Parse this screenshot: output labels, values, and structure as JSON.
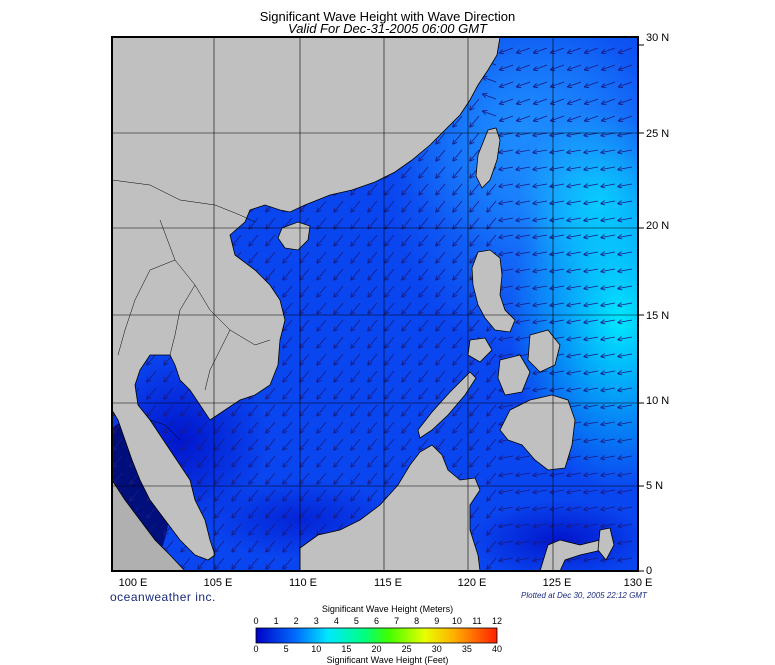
{
  "title": "Significant Wave Height with Wave Direction",
  "subtitle": "Valid For Dec-31-2005 06:00 GMT",
  "x_axis_labels": [
    "100 E",
    "105 E",
    "110 E",
    "115 E",
    "120 E",
    "125 E",
    "130 E"
  ],
  "y_axis_labels": [
    "30 N",
    "25 N",
    "20 N",
    "15 N",
    "10 N",
    "5 N",
    "0"
  ],
  "logo": "oceanweather inc.",
  "plotted_note": "Plotted at Dec 30, 2005 22:12 GMT",
  "colorbar": {
    "title_meters": "Significant Wave Height (Meters)",
    "title_feet": "Significant Wave Height (Feet)",
    "meter_ticks": [
      "0",
      "1",
      "2",
      "3",
      "4",
      "5",
      "6",
      "7",
      "8",
      "9",
      "10",
      "11",
      "12"
    ],
    "feet_ticks": [
      "0",
      "5",
      "10",
      "15",
      "20",
      "25",
      "30",
      "35",
      "40"
    ]
  },
  "colors": {
    "land": "#c0c0c0",
    "sea_deep": "#0000d0",
    "sea_mid": "#0a3cf0",
    "sea_light": "#1e90ff",
    "sea_cyan": "#00e0ff",
    "arrow": "#1a1a80"
  }
}
